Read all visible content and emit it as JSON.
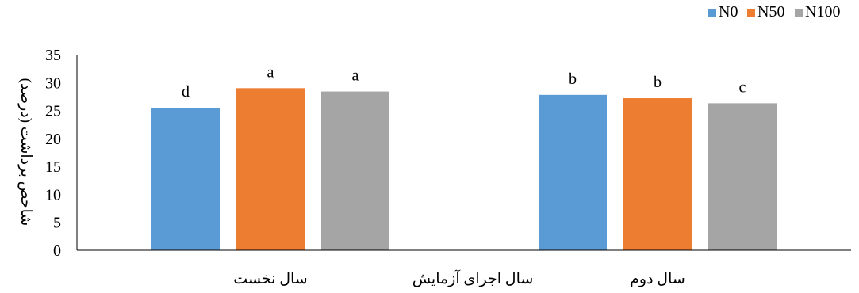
{
  "chart_data": {
    "type": "bar",
    "title": "",
    "categories": [
      "سال نخست",
      "سال دوم"
    ],
    "xlabel": "سال اجرای آزمایش",
    "ylabel": "شاخص برداشت  (درصد)",
    "ylim": [
      0,
      35
    ],
    "yticks": [
      0,
      5,
      10,
      15,
      20,
      25,
      30,
      35
    ],
    "grid": false,
    "legend_position": "top-right",
    "series": [
      {
        "name": "N0",
        "color": "#5B9BD5",
        "values": [
          25.5,
          27.8
        ],
        "labels": [
          "d",
          "b"
        ]
      },
      {
        "name": "N50",
        "color": "#ED7D31",
        "values": [
          29.0,
          27.2
        ],
        "labels": [
          "a",
          "b"
        ]
      },
      {
        "name": "N100",
        "color": "#A5A5A5",
        "values": [
          28.4,
          26.3
        ],
        "labels": [
          "a",
          "c"
        ]
      }
    ]
  }
}
